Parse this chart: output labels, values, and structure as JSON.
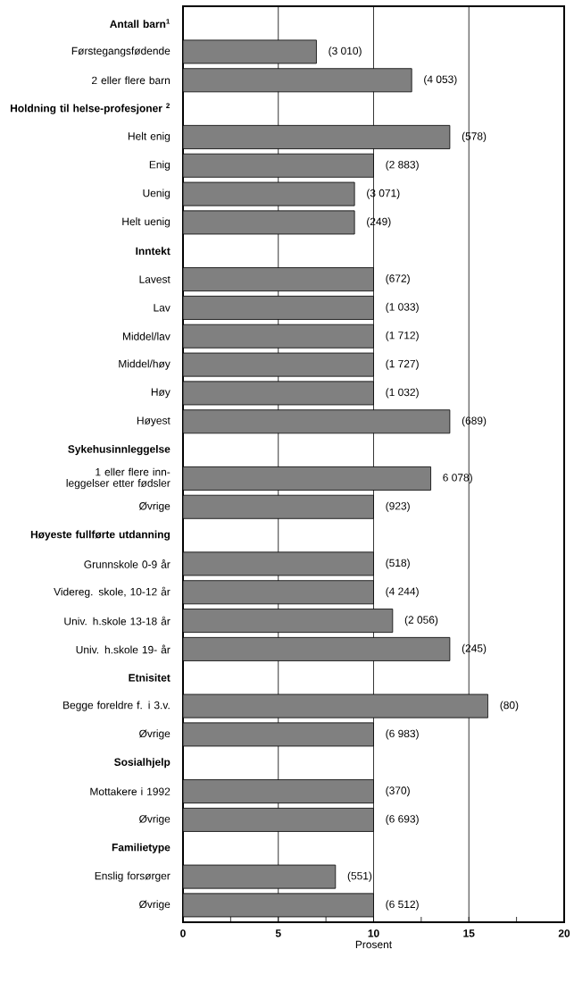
{
  "chart_data": {
    "type": "bar",
    "orientation": "horizontal",
    "xlabel": "Prosent",
    "categories": [
      "Antall barn$^{1}$",
      "Førstegangsfødende",
      "2 eller flere barn",
      "Holdning til helse-profesjoner $^{2}$",
      "Helt enig",
      "Enig",
      "Uenig",
      "Helt uenig",
      "Inntekt",
      "Lavest",
      "Lav",
      "Middel/lav",
      "Middel/høy",
      "Høy",
      "Høyest",
      "Sykehusinnleggelse",
      "1 eller flere inn-leggelser etter fødsler",
      "Øvrige",
      "Høyeste fullførte utdanning",
      "Grunnskole 0-9 år",
      "Videreg. skole, 10-12 år",
      "Univ. h.skole 13-18 år",
      "Univ. h.skole 19- år",
      "Etnisitet",
      "Begge foreldre f. i 3.v.",
      "Øvrige",
      "Sosialhjelp",
      "Mottakere i 1992",
      "Øvrige",
      "Familietype",
      "Enslig forsørger",
      "Øvrige"
    ],
    "values": [
      null,
      7,
      12,
      null,
      14,
      10,
      9,
      9,
      null,
      10,
      10,
      10,
      10,
      10,
      14,
      null,
      13,
      10,
      null,
      10,
      10,
      11,
      14,
      null,
      16,
      10,
      null,
      10,
      10,
      null,
      8,
      10
    ],
    "annotations": [
      "(3 010)",
      "(4 053)",
      "(578)",
      "(2 883)",
      "(3 071)",
      "(249)",
      "(672)",
      "(1 033)",
      "(1 712)",
      "(1 727)",
      "(1 032)",
      "(689)",
      "6 078)",
      "(923)",
      "(518)",
      "(4 244)",
      "(2 056)",
      "(245)",
      "(80)",
      "(6 983)",
      "(370)",
      "(6 693)",
      "(551)",
      "(6 512)"
    ],
    "color": "#808080",
    "xlim": [
      0,
      20
    ],
    "xticks": [
      0,
      {
        "value": 2.5,
        "label": null
      },
      5,
      {
        "value": 7.5,
        "label": null
      },
      10,
      {
        "value": 12.5,
        "label": null
      },
      15,
      {
        "value": 17.5,
        "label": null
      },
      20
    ],
    "grid": "x"
  }
}
